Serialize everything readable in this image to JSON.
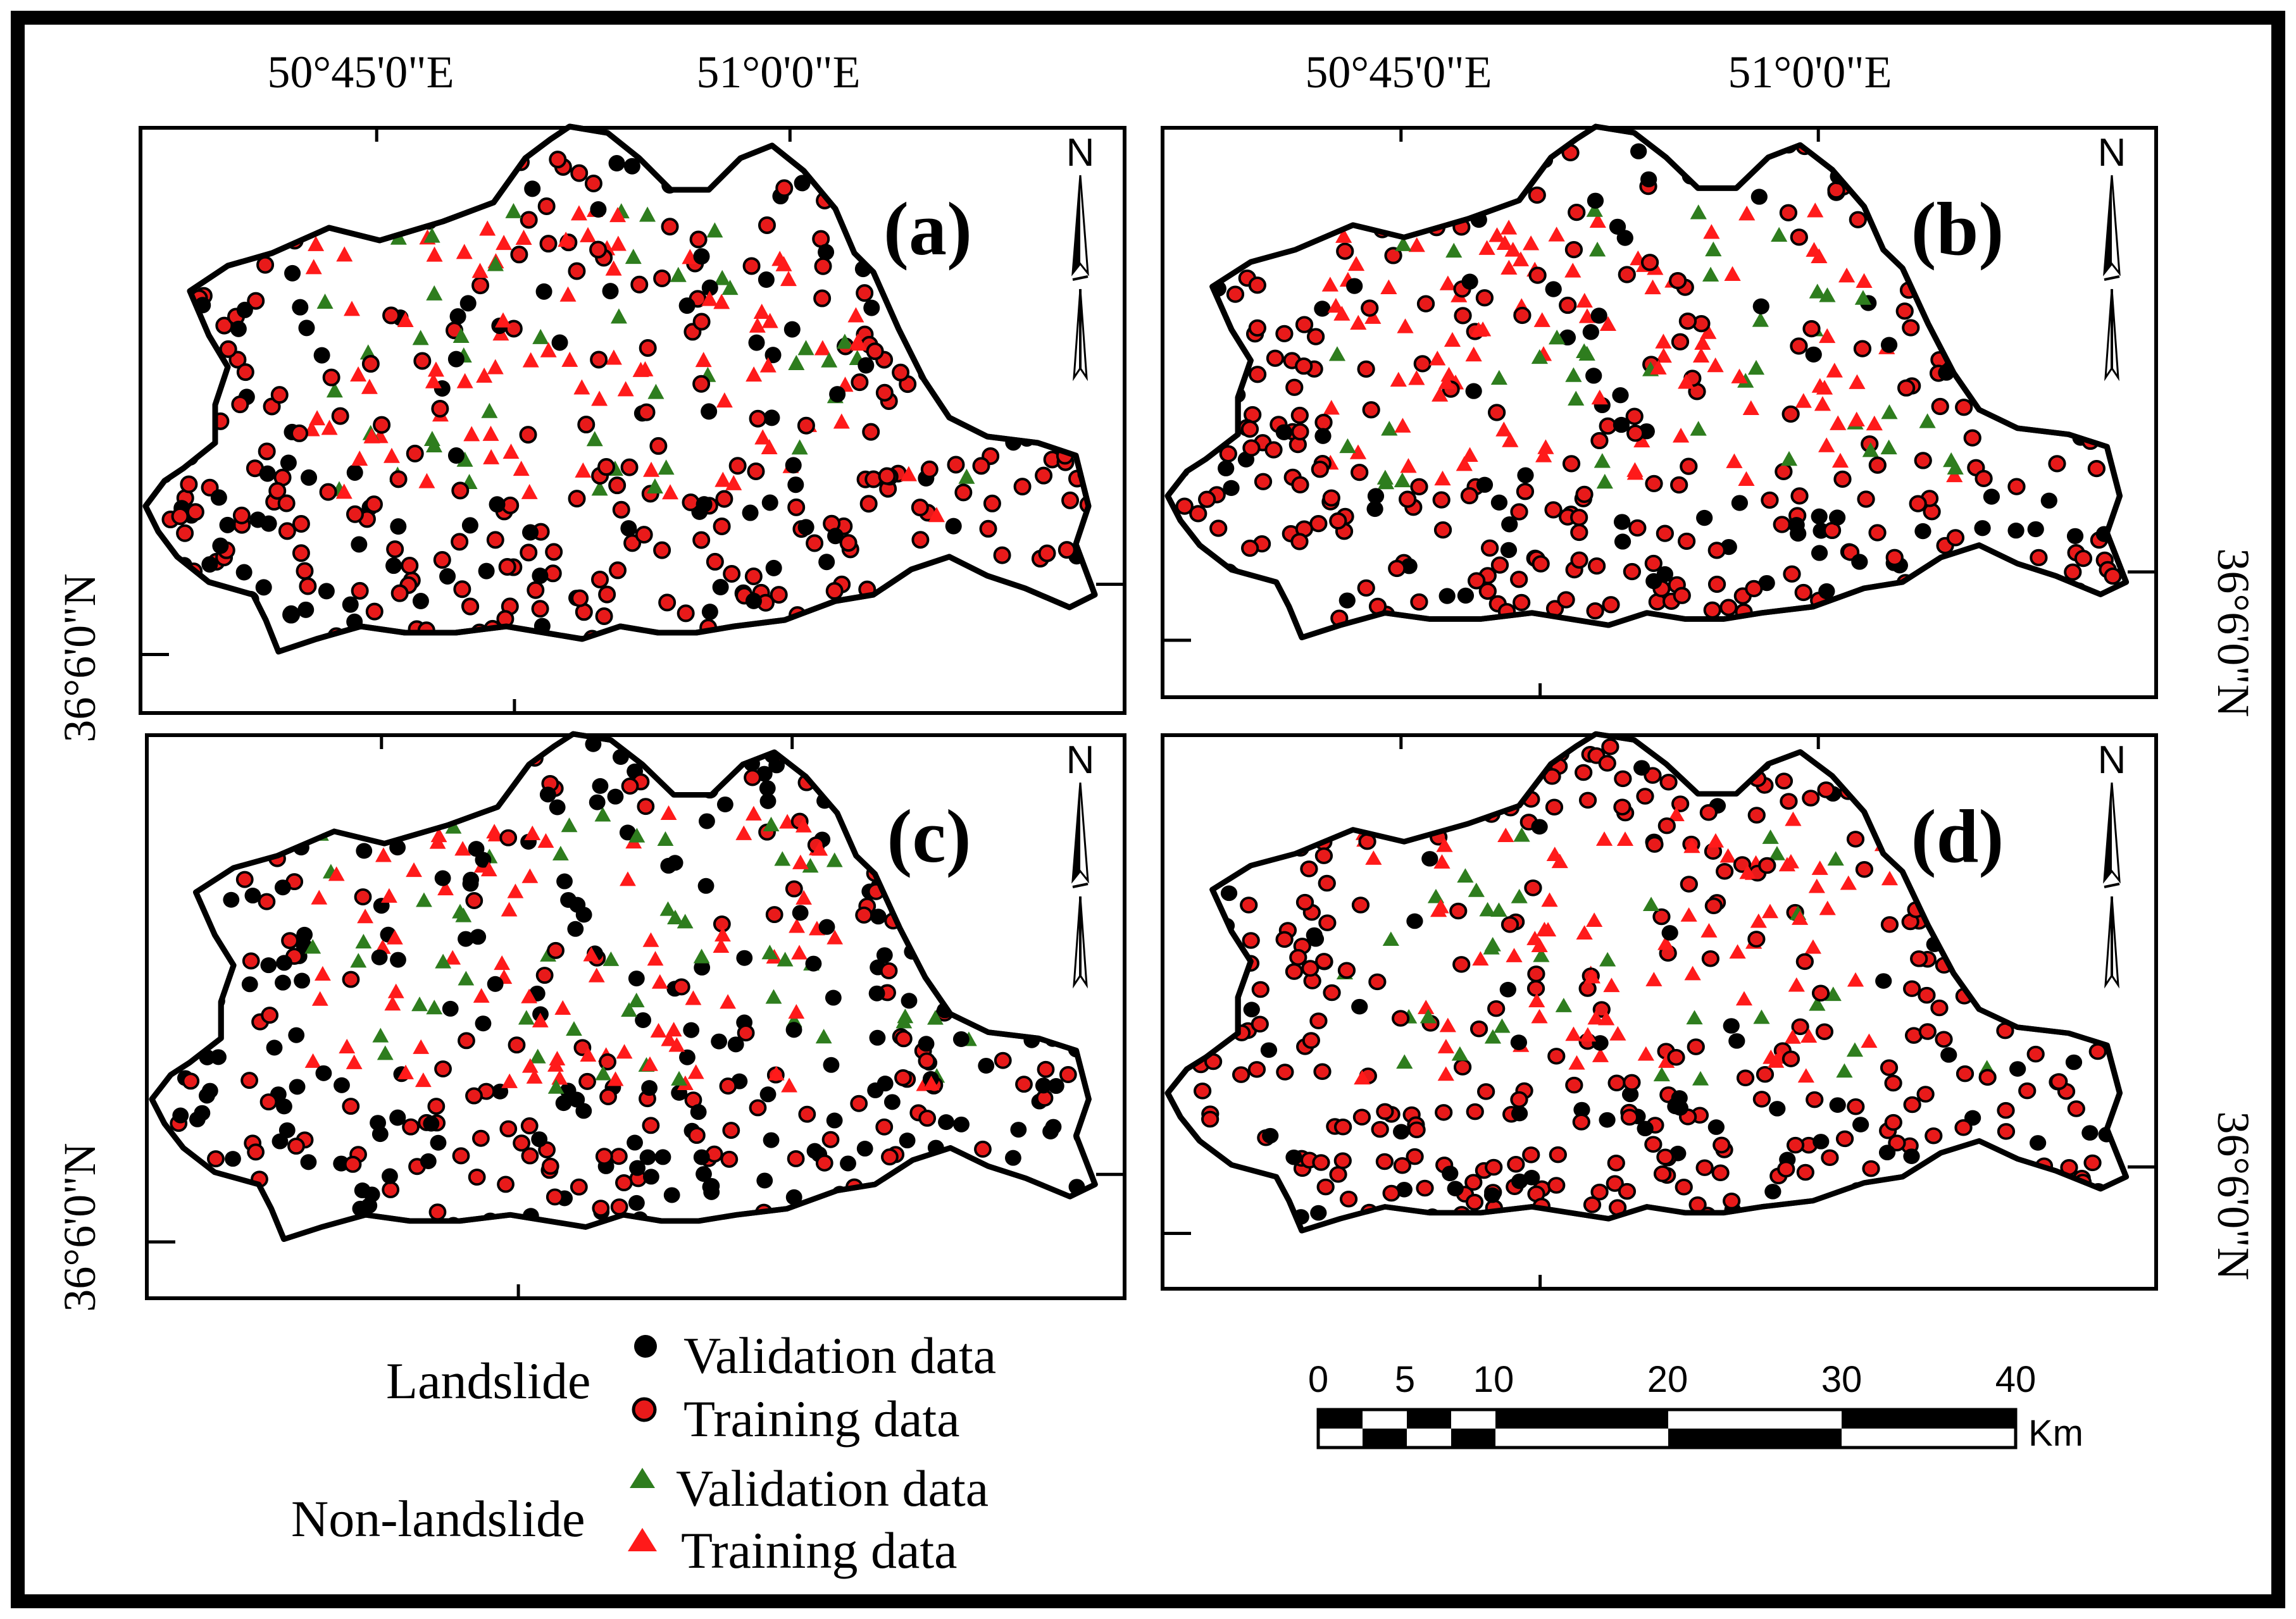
{
  "figure": {
    "longitude_labels": [
      "50°45'0\"E",
      "51°0'0\"E"
    ],
    "latitude_label": "36°6'0\"N",
    "panels": [
      {
        "label": "(a)",
        "north": "N"
      },
      {
        "label": "(b)",
        "north": "N"
      },
      {
        "label": "(c)",
        "north": "N"
      },
      {
        "label": "(d)",
        "north": "N"
      }
    ]
  },
  "legend": {
    "landslide_heading": "Landslide",
    "non_landslide_heading": "Non-landslide",
    "landslide_validation": "Validation data",
    "landslide_training": "Training data",
    "non_landslide_validation": "Validation data",
    "non_landslide_training": "Training data"
  },
  "scale_bar": {
    "ticks": [
      "0",
      "5",
      "10",
      "20",
      "30",
      "40"
    ],
    "unit": "Km"
  },
  "colors": {
    "landslide_validation": "#000000",
    "landslide_training": "#e81a1a",
    "non_landslide_validation": "#2e7d1e",
    "non_landslide_training": "#ff1a1a"
  }
}
